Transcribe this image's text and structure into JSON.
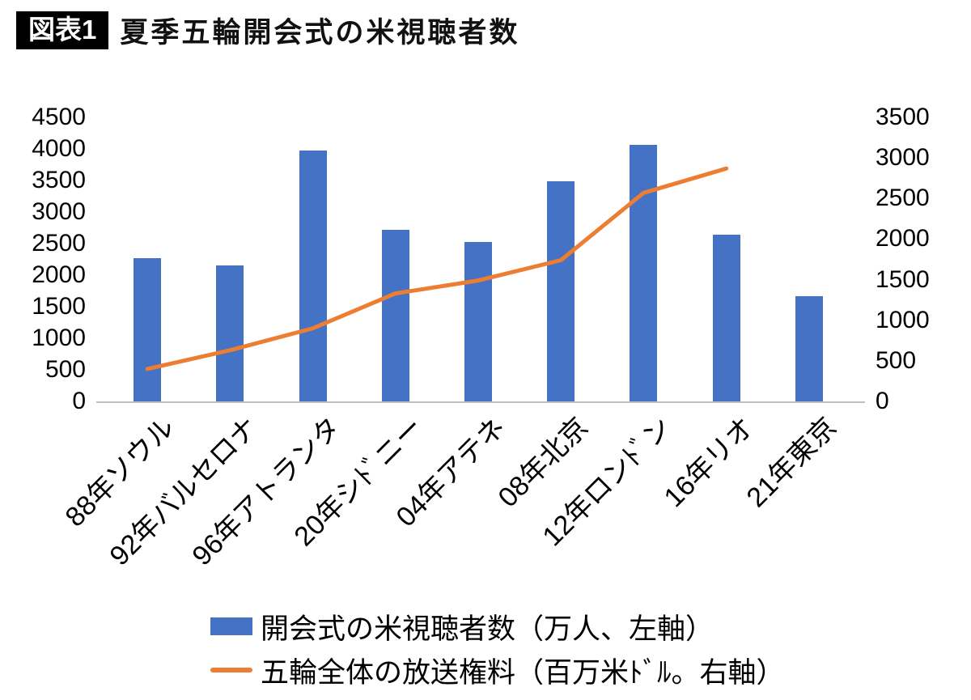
{
  "header": {
    "badge": "図表1",
    "title": "夏季五輪開会式の米視聴者数"
  },
  "chart_data": {
    "type": "combo",
    "title": "夏季五輪開会式の米視聴者数",
    "categories": [
      "88年ソウル",
      "92年バルセロナ",
      "96年アトランタ",
      "20年シﾄﾞニー",
      "04年アテネ",
      "08年北京",
      "12年ロンﾄﾞン",
      "16年リオ",
      "21年東京"
    ],
    "series": [
      {
        "name": "開会式の米視聴者数（万人、左軸）",
        "type": "bar",
        "axis": "left",
        "color": "#4472C4",
        "values": [
          2270,
          2160,
          3970,
          2720,
          2530,
          3490,
          4070,
          2640,
          1670
        ]
      },
      {
        "name": "五輪全体の放送権料（百万米ﾄﾞﾙ。右軸）",
        "type": "line",
        "axis": "right",
        "color": "#ED7D31",
        "values": [
          400,
          630,
          900,
          1330,
          1490,
          1740,
          2570,
          2870,
          null
        ]
      }
    ],
    "left_axis": {
      "min": 0,
      "max": 4500,
      "step": 500
    },
    "right_axis": {
      "min": 0,
      "max": 3500,
      "step": 500
    },
    "grid": false,
    "legend_position": "bottom"
  }
}
